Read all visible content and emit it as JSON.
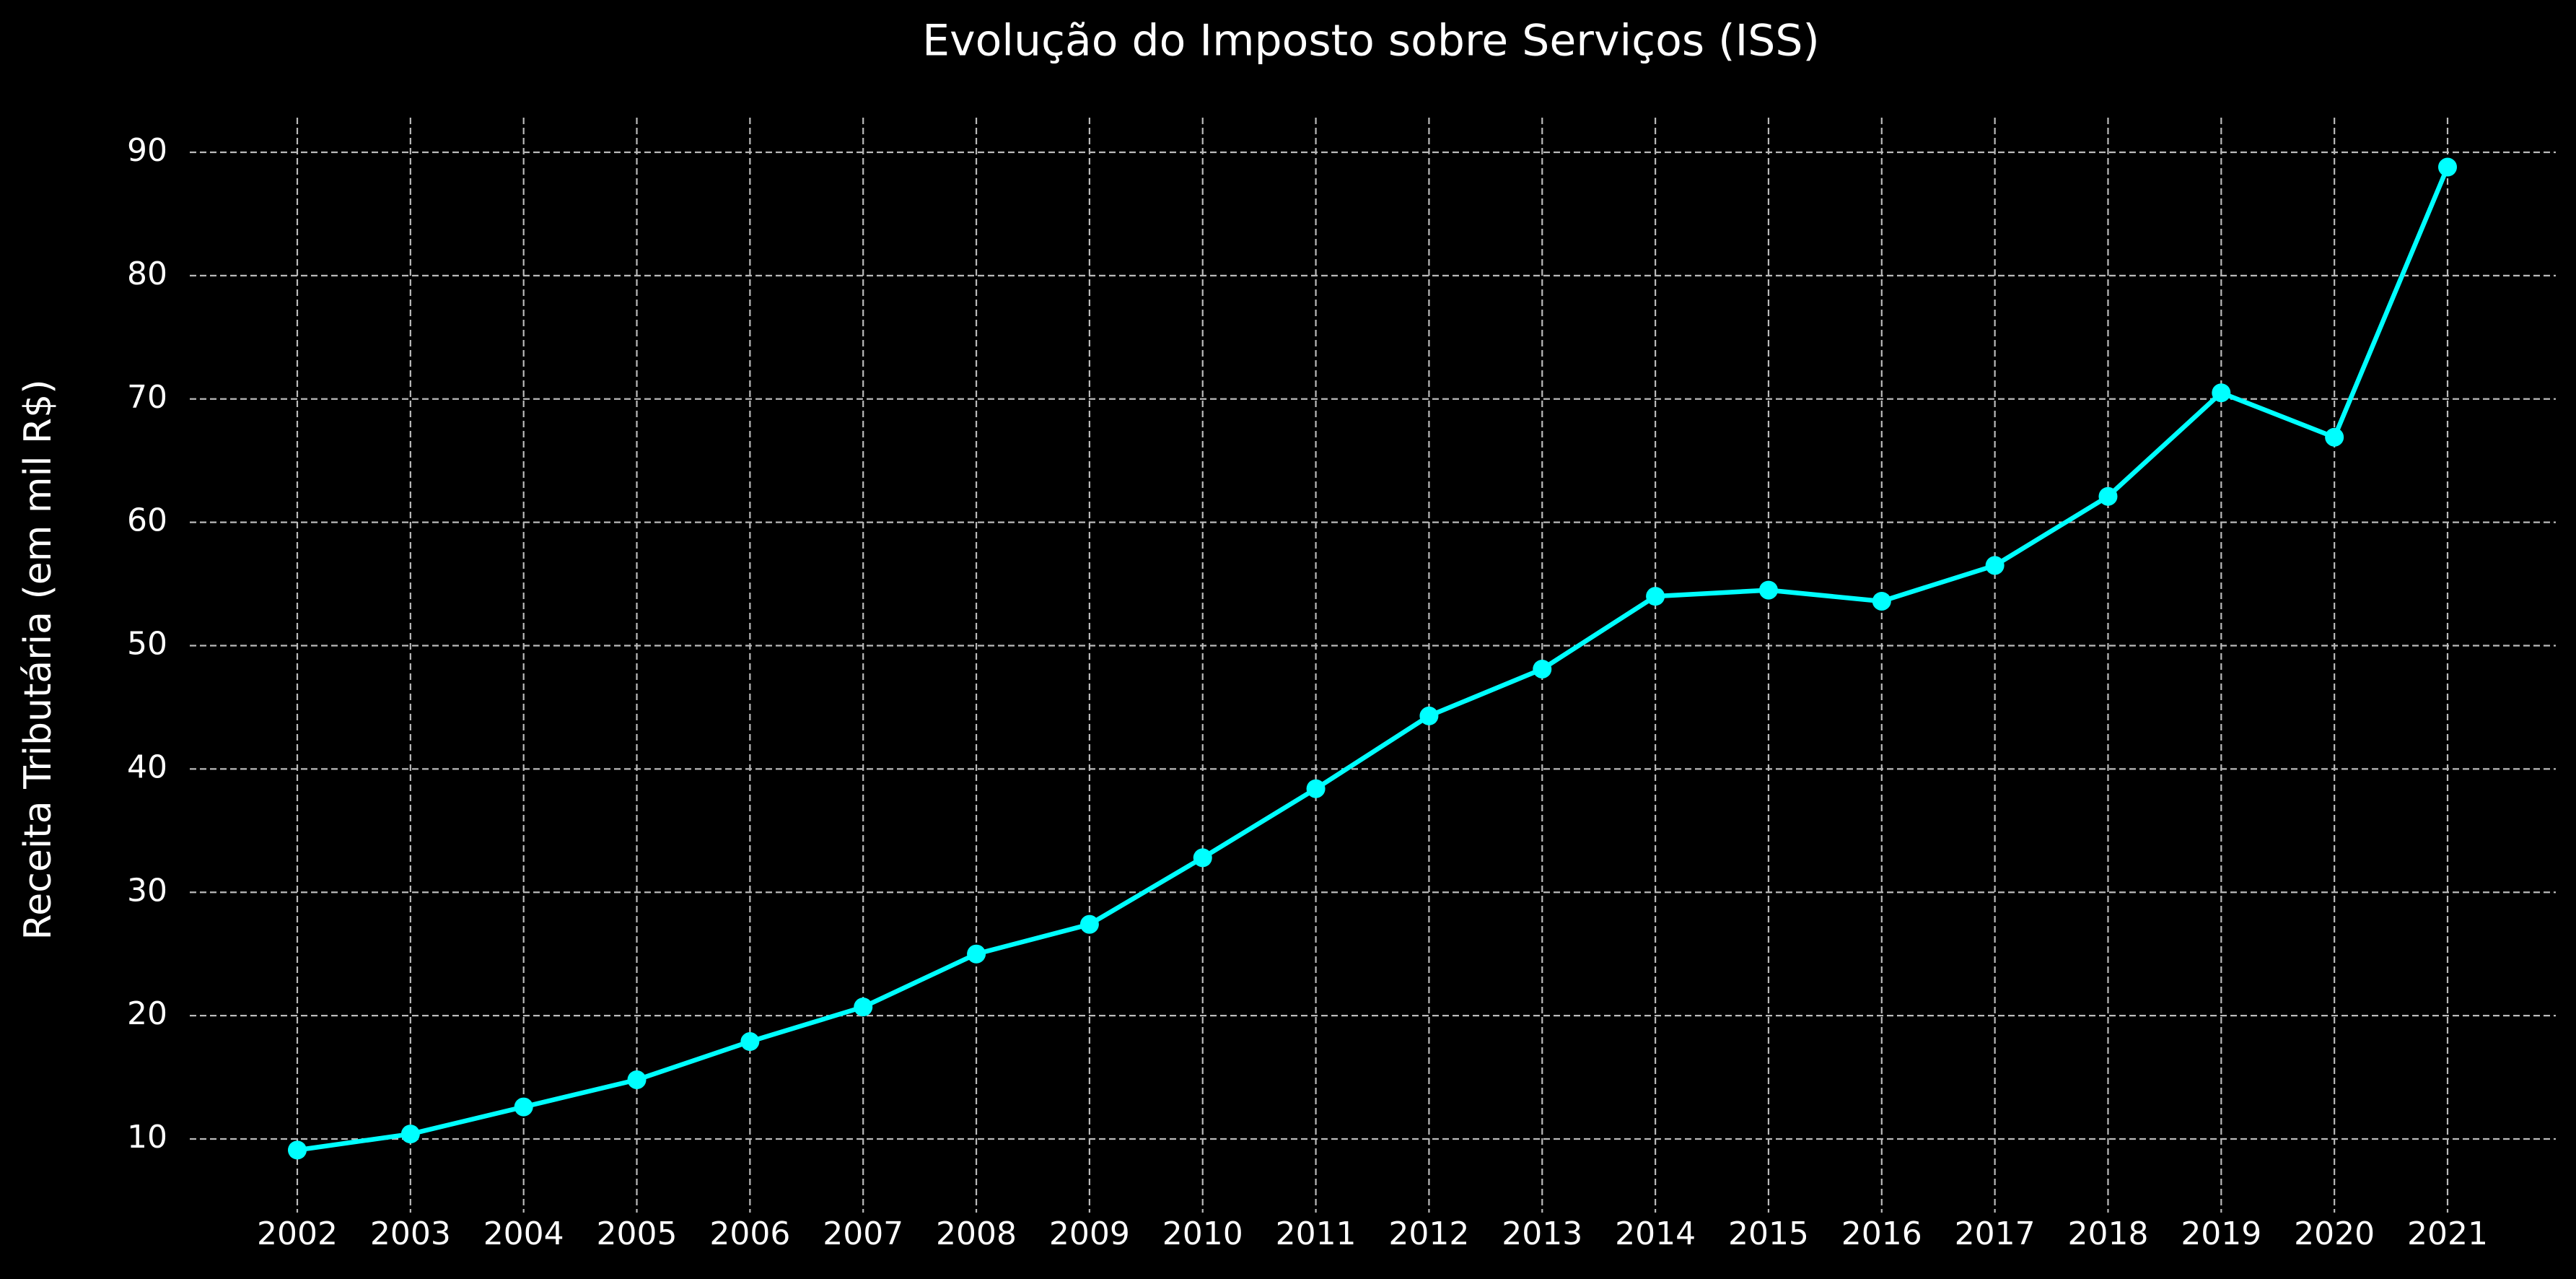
{
  "chart_data": {
    "type": "line",
    "title": "Evolução do Imposto sobre Serviços (ISS)",
    "xlabel": "",
    "ylabel": "Receita Tributária (em mil R$)",
    "x": [
      "2002",
      "2003",
      "2004",
      "2005",
      "2006",
      "2007",
      "2008",
      "2009",
      "2010",
      "2011",
      "2012",
      "2013",
      "2014",
      "2015",
      "2016",
      "2017",
      "2018",
      "2019",
      "2020",
      "2021"
    ],
    "series": [
      {
        "values": [
          9.1,
          10.4,
          12.6,
          14.8,
          17.9,
          20.7,
          25.0,
          27.4,
          32.8,
          38.4,
          44.3,
          48.1,
          54.0,
          54.5,
          53.6,
          56.5,
          62.1,
          70.5,
          66.9,
          88.8
        ],
        "color": "#00FFFF"
      }
    ],
    "yticks": [
      10,
      20,
      30,
      40,
      50,
      60,
      70,
      80,
      90
    ],
    "ylim": [
      5,
      93.5
    ],
    "grid": true,
    "colors": {
      "background": "#000000",
      "text": "#FFFFFF",
      "grid": "#BBBBBB",
      "line": "#00FFFF"
    }
  }
}
